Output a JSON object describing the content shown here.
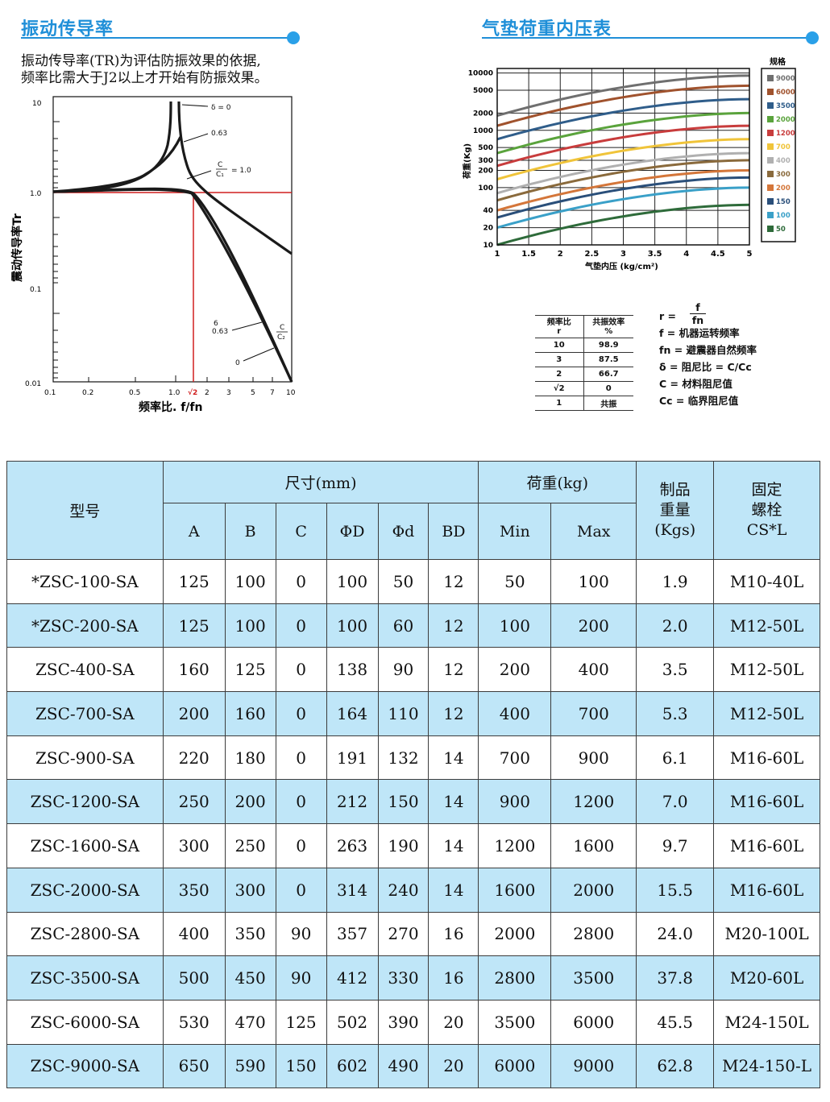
{
  "left_section": {
    "title": "振动传导率",
    "intro_line1": "振动传导率(TR)为评估防振效果的依据,",
    "intro_line2": "频率比需大于J2以上才开始有防振效果。"
  },
  "right_section": {
    "title": "气垫荷重内压表"
  },
  "transmissibility_chart": {
    "ylabel": "震动传导率Tr",
    "xlabel": "频率比. f/fn",
    "y_ticks": [
      "10",
      "1.0",
      "0.1",
      "0.01"
    ],
    "x_ticks": [
      "0.1",
      "0.2",
      "0.5",
      "1.0",
      "√2",
      "2",
      "3",
      "5",
      "7",
      "10"
    ],
    "labels": {
      "zeta0_top": "δ = 0",
      "zeta063_top": "0.63",
      "ratio_num": "C",
      "ratio_den": "C₁",
      "ratio_val": "= 1.0",
      "low6": "6",
      "low063": "0.63",
      "low0": "0",
      "low_ratio_num": "C",
      "low_ratio_den": "C₂"
    }
  },
  "chart_data": {
    "type": "line",
    "title": "气垫荷重内压表",
    "xlabel": "气垫内压 (kg/cm²)",
    "ylabel": "荷重(Kg)",
    "legend_title": "规格",
    "scale_y": "log",
    "x": [
      1,
      1.5,
      2,
      2.5,
      3,
      3.5,
      4,
      4.5,
      5
    ],
    "x_ticks": [
      "1",
      "1.5",
      "2",
      "2.5",
      "3",
      "3.5",
      "4",
      "4.5",
      "5"
    ],
    "y_ticks": [
      "10000",
      "5000",
      "2000",
      "1000",
      "500",
      "300",
      "200",
      "100",
      "40",
      "20",
      "10"
    ],
    "legend_position": "right",
    "series": [
      {
        "name": "9000",
        "color": "#6f6f6f",
        "y_start": 1800,
        "y_end": 9000
      },
      {
        "name": "6000",
        "color": "#a0522d",
        "y_start": 1200,
        "y_end": 6000
      },
      {
        "name": "3500",
        "color": "#2f5d8a",
        "y_start": 700,
        "y_end": 3500
      },
      {
        "name": "2000",
        "color": "#5aa33c",
        "y_start": 400,
        "y_end": 2000
      },
      {
        "name": "1200",
        "color": "#c83c3c",
        "y_start": 240,
        "y_end": 1200
      },
      {
        "name": "700",
        "color": "#f0c43a",
        "y_start": 140,
        "y_end": 700
      },
      {
        "name": "400",
        "color": "#b0b0b0",
        "y_start": 80,
        "y_end": 400
      },
      {
        "name": "300",
        "color": "#8a6a3c",
        "y_start": 60,
        "y_end": 300
      },
      {
        "name": "200",
        "color": "#d4763a",
        "y_start": 40,
        "y_end": 200
      },
      {
        "name": "150",
        "color": "#2a4f7a",
        "y_start": 30,
        "y_end": 150
      },
      {
        "name": "100",
        "color": "#3aa0c8",
        "y_start": 20,
        "y_end": 100
      },
      {
        "name": "50",
        "color": "#2e6b3a",
        "y_start": 10,
        "y_end": 50
      }
    ]
  },
  "efficiency_table": {
    "head_ratio": "频率比",
    "head_ratio_sym": "r",
    "head_eff": "共振效率",
    "head_eff_unit": "%",
    "rows": [
      {
        "r": "10",
        "eff": "98.9"
      },
      {
        "r": "3",
        "eff": "87.5"
      },
      {
        "r": "2",
        "eff": "66.7"
      },
      {
        "r": "√2",
        "eff": "0"
      },
      {
        "r": "1",
        "eff": "共振"
      }
    ]
  },
  "definitions": {
    "r_label": "r  =",
    "r_num": "f",
    "r_den": "fn",
    "f_line": "f   = 机器运转频率",
    "fn_line": "fn = 避震器自然频率",
    "delta_line": "δ  = 阻尼比  = C/Cc",
    "c_line": "C  = 材料阻尼值",
    "cc_line": "Cc = 临界阻尼值"
  },
  "spec_table": {
    "headers": {
      "model": "型号",
      "dims": "尺寸(mm)",
      "load": "荷重(kg)",
      "weight_l1": "制品",
      "weight_l2": "重量",
      "weight_l3": "(Kgs)",
      "bolt_l1": "固定",
      "bolt_l2": "螺栓",
      "bolt_l3": "CS*L",
      "a": "A",
      "b": "B",
      "c": "C",
      "D": "ΦD",
      "d": "Φd",
      "bd": "BD",
      "min": "Min",
      "max": "Max"
    },
    "rows": [
      [
        "*ZSC-100-SA",
        "125",
        "100",
        "0",
        "100",
        "50",
        "12",
        "50",
        "100",
        "1.9",
        "M10-40L"
      ],
      [
        "*ZSC-200-SA",
        "125",
        "100",
        "0",
        "100",
        "60",
        "12",
        "100",
        "200",
        "2.0",
        "M12-50L"
      ],
      [
        "ZSC-400-SA",
        "160",
        "125",
        "0",
        "138",
        "90",
        "12",
        "200",
        "400",
        "3.5",
        "M12-50L"
      ],
      [
        "ZSC-700-SA",
        "200",
        "160",
        "0",
        "164",
        "110",
        "12",
        "400",
        "700",
        "5.3",
        "M12-50L"
      ],
      [
        "ZSC-900-SA",
        "220",
        "180",
        "0",
        "191",
        "132",
        "14",
        "700",
        "900",
        "6.1",
        "M16-60L"
      ],
      [
        "ZSC-1200-SA",
        "250",
        "200",
        "0",
        "212",
        "150",
        "14",
        "900",
        "1200",
        "7.0",
        "M16-60L"
      ],
      [
        "ZSC-1600-SA",
        "300",
        "250",
        "0",
        "263",
        "190",
        "14",
        "1200",
        "1600",
        "9.7",
        "M16-60L"
      ],
      [
        "ZSC-2000-SA",
        "350",
        "300",
        "0",
        "314",
        "240",
        "14",
        "1600",
        "2000",
        "15.5",
        "M16-60L"
      ],
      [
        "ZSC-2800-SA",
        "400",
        "350",
        "90",
        "357",
        "270",
        "16",
        "2000",
        "2800",
        "24.0",
        "M20-100L"
      ],
      [
        "ZSC-3500-SA",
        "500",
        "450",
        "90",
        "412",
        "330",
        "16",
        "2800",
        "3500",
        "37.8",
        "M20-60L"
      ],
      [
        "ZSC-6000-SA",
        "530",
        "470",
        "125",
        "502",
        "390",
        "20",
        "3500",
        "6000",
        "45.5",
        "M24-150L"
      ],
      [
        "ZSC-9000-SA",
        "650",
        "590",
        "150",
        "602",
        "490",
        "20",
        "6000",
        "9000",
        "62.8",
        "M24-150-L"
      ]
    ]
  }
}
